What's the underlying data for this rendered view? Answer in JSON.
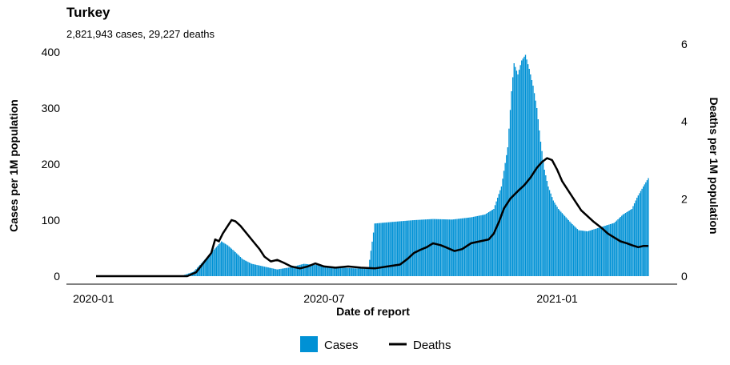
{
  "header": {
    "title": "Turkey",
    "subtitle": "2,821,943 cases, 29,227 deaths"
  },
  "chart_data": {
    "type": "bar",
    "title": "Turkey",
    "subtitle": "2,821,943 cases, 29,227 deaths",
    "xlabel": "Date of report",
    "ylabel": "Cases per 1M population",
    "y2label": "Deaths per 1M population",
    "xlim": [
      "2020-01-03",
      "2021-03-14"
    ],
    "ylim": [
      0,
      400
    ],
    "y2lim": [
      0,
      6
    ],
    "x_ticks": [
      {
        "date": "2020-01-01",
        "label": "2020-01"
      },
      {
        "date": "2020-07-01",
        "label": "2020-07"
      },
      {
        "date": "2021-01-01",
        "label": "2021-01"
      }
    ],
    "y_ticks": [
      0,
      100,
      200,
      300,
      400
    ],
    "y2_ticks": [
      0,
      2,
      4,
      6
    ],
    "grid": false,
    "legend_position": "bottom",
    "colors": {
      "cases": "#0091d5",
      "deaths": "#000000"
    },
    "series": [
      {
        "name": "Cases",
        "kind": "bar",
        "axis": "left",
        "points": [
          [
            "2020-01-03",
            0
          ],
          [
            "2020-03-10",
            0
          ],
          [
            "2020-03-20",
            8
          ],
          [
            "2020-03-27",
            25
          ],
          [
            "2020-04-02",
            40
          ],
          [
            "2020-04-07",
            52
          ],
          [
            "2020-04-11",
            62
          ],
          [
            "2020-04-16",
            55
          ],
          [
            "2020-04-21",
            45
          ],
          [
            "2020-04-28",
            30
          ],
          [
            "2020-05-05",
            22
          ],
          [
            "2020-05-15",
            17
          ],
          [
            "2020-05-25",
            12
          ],
          [
            "2020-06-05",
            16
          ],
          [
            "2020-06-15",
            22
          ],
          [
            "2020-06-25",
            20
          ],
          [
            "2020-07-05",
            17
          ],
          [
            "2020-07-15",
            15
          ],
          [
            "2020-07-25",
            14
          ],
          [
            "2020-08-05",
            13
          ],
          [
            "2020-08-10",
            94
          ],
          [
            "2020-08-25",
            97
          ],
          [
            "2020-09-10",
            100
          ],
          [
            "2020-09-25",
            102
          ],
          [
            "2020-10-10",
            101
          ],
          [
            "2020-10-25",
            105
          ],
          [
            "2020-11-05",
            110
          ],
          [
            "2020-11-12",
            120
          ],
          [
            "2020-11-18",
            160
          ],
          [
            "2020-11-23",
            230
          ],
          [
            "2020-11-26",
            330
          ],
          [
            "2020-11-28",
            380
          ],
          [
            "2020-12-01",
            360
          ],
          [
            "2020-12-04",
            385
          ],
          [
            "2020-12-07",
            395
          ],
          [
            "2020-12-10",
            370
          ],
          [
            "2020-12-13",
            340
          ],
          [
            "2020-12-16",
            300
          ],
          [
            "2020-12-19",
            240
          ],
          [
            "2020-12-22",
            190
          ],
          [
            "2020-12-25",
            160
          ],
          [
            "2020-12-29",
            135
          ],
          [
            "2021-01-02",
            120
          ],
          [
            "2021-01-06",
            110
          ],
          [
            "2021-01-12",
            95
          ],
          [
            "2021-01-18",
            82
          ],
          [
            "2021-01-25",
            80
          ],
          [
            "2021-02-01",
            85
          ],
          [
            "2021-02-08",
            90
          ],
          [
            "2021-02-15",
            95
          ],
          [
            "2021-02-22",
            110
          ],
          [
            "2021-03-01",
            120
          ],
          [
            "2021-03-05",
            140
          ],
          [
            "2021-03-10",
            160
          ],
          [
            "2021-03-14",
            175
          ]
        ]
      },
      {
        "name": "Deaths",
        "kind": "line",
        "axis": "right",
        "points": [
          [
            "2020-01-03",
            0
          ],
          [
            "2020-03-15",
            0
          ],
          [
            "2020-03-22",
            0.1
          ],
          [
            "2020-03-28",
            0.35
          ],
          [
            "2020-04-03",
            0.6
          ],
          [
            "2020-04-06",
            0.95
          ],
          [
            "2020-04-09",
            0.9
          ],
          [
            "2020-04-12",
            1.1
          ],
          [
            "2020-04-15",
            1.25
          ],
          [
            "2020-04-19",
            1.45
          ],
          [
            "2020-04-22",
            1.42
          ],
          [
            "2020-04-26",
            1.3
          ],
          [
            "2020-05-01",
            1.1
          ],
          [
            "2020-05-06",
            0.9
          ],
          [
            "2020-05-11",
            0.7
          ],
          [
            "2020-05-15",
            0.5
          ],
          [
            "2020-05-20",
            0.38
          ],
          [
            "2020-05-25",
            0.42
          ],
          [
            "2020-05-30",
            0.35
          ],
          [
            "2020-06-05",
            0.25
          ],
          [
            "2020-06-12",
            0.2
          ],
          [
            "2020-06-18",
            0.25
          ],
          [
            "2020-06-24",
            0.33
          ],
          [
            "2020-07-01",
            0.25
          ],
          [
            "2020-07-10",
            0.22
          ],
          [
            "2020-07-20",
            0.25
          ],
          [
            "2020-07-30",
            0.22
          ],
          [
            "2020-08-10",
            0.2
          ],
          [
            "2020-08-20",
            0.25
          ],
          [
            "2020-08-30",
            0.3
          ],
          [
            "2020-09-05",
            0.45
          ],
          [
            "2020-09-10",
            0.6
          ],
          [
            "2020-09-15",
            0.68
          ],
          [
            "2020-09-20",
            0.75
          ],
          [
            "2020-09-25",
            0.85
          ],
          [
            "2020-10-01",
            0.8
          ],
          [
            "2020-10-05",
            0.75
          ],
          [
            "2020-10-12",
            0.65
          ],
          [
            "2020-10-18",
            0.7
          ],
          [
            "2020-10-25",
            0.85
          ],
          [
            "2020-11-01",
            0.9
          ],
          [
            "2020-11-08",
            0.95
          ],
          [
            "2020-11-12",
            1.1
          ],
          [
            "2020-11-16",
            1.4
          ],
          [
            "2020-11-20",
            1.75
          ],
          [
            "2020-11-25",
            2.0
          ],
          [
            "2020-12-01",
            2.2
          ],
          [
            "2020-12-06",
            2.35
          ],
          [
            "2020-12-11",
            2.55
          ],
          [
            "2020-12-16",
            2.8
          ],
          [
            "2020-12-20",
            2.95
          ],
          [
            "2020-12-24",
            3.05
          ],
          [
            "2020-12-28",
            3.0
          ],
          [
            "2021-01-01",
            2.75
          ],
          [
            "2021-01-05",
            2.45
          ],
          [
            "2021-01-10",
            2.2
          ],
          [
            "2021-01-15",
            1.95
          ],
          [
            "2021-01-20",
            1.7
          ],
          [
            "2021-01-25",
            1.55
          ],
          [
            "2021-01-30",
            1.4
          ],
          [
            "2021-02-05",
            1.25
          ],
          [
            "2021-02-10",
            1.1
          ],
          [
            "2021-02-15",
            1.0
          ],
          [
            "2021-02-20",
            0.9
          ],
          [
            "2021-02-25",
            0.85
          ],
          [
            "2021-03-01",
            0.8
          ],
          [
            "2021-03-06",
            0.75
          ],
          [
            "2021-03-10",
            0.78
          ],
          [
            "2021-03-14",
            0.78
          ]
        ]
      }
    ]
  }
}
